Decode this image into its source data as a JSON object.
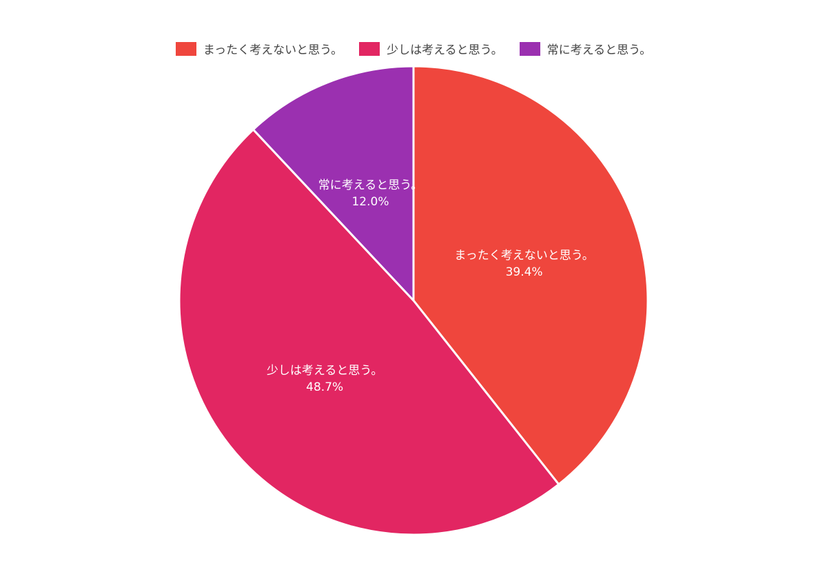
{
  "chart_data": {
    "type": "pie",
    "categories": [
      "まったく考えないと思う。",
      "少しは考えると思う。",
      "常に考えると思う。"
    ],
    "values": [
      39.4,
      48.7,
      12.0
    ],
    "value_labels": [
      "39.4%",
      "48.7%",
      "12.0%"
    ],
    "colors": [
      "#ef463d",
      "#e22662",
      "#9b30b0"
    ],
    "start_angle": "12 o'clock",
    "direction": "clockwise",
    "legend_position": "top-center",
    "slice_border_color": "#ffffff"
  }
}
